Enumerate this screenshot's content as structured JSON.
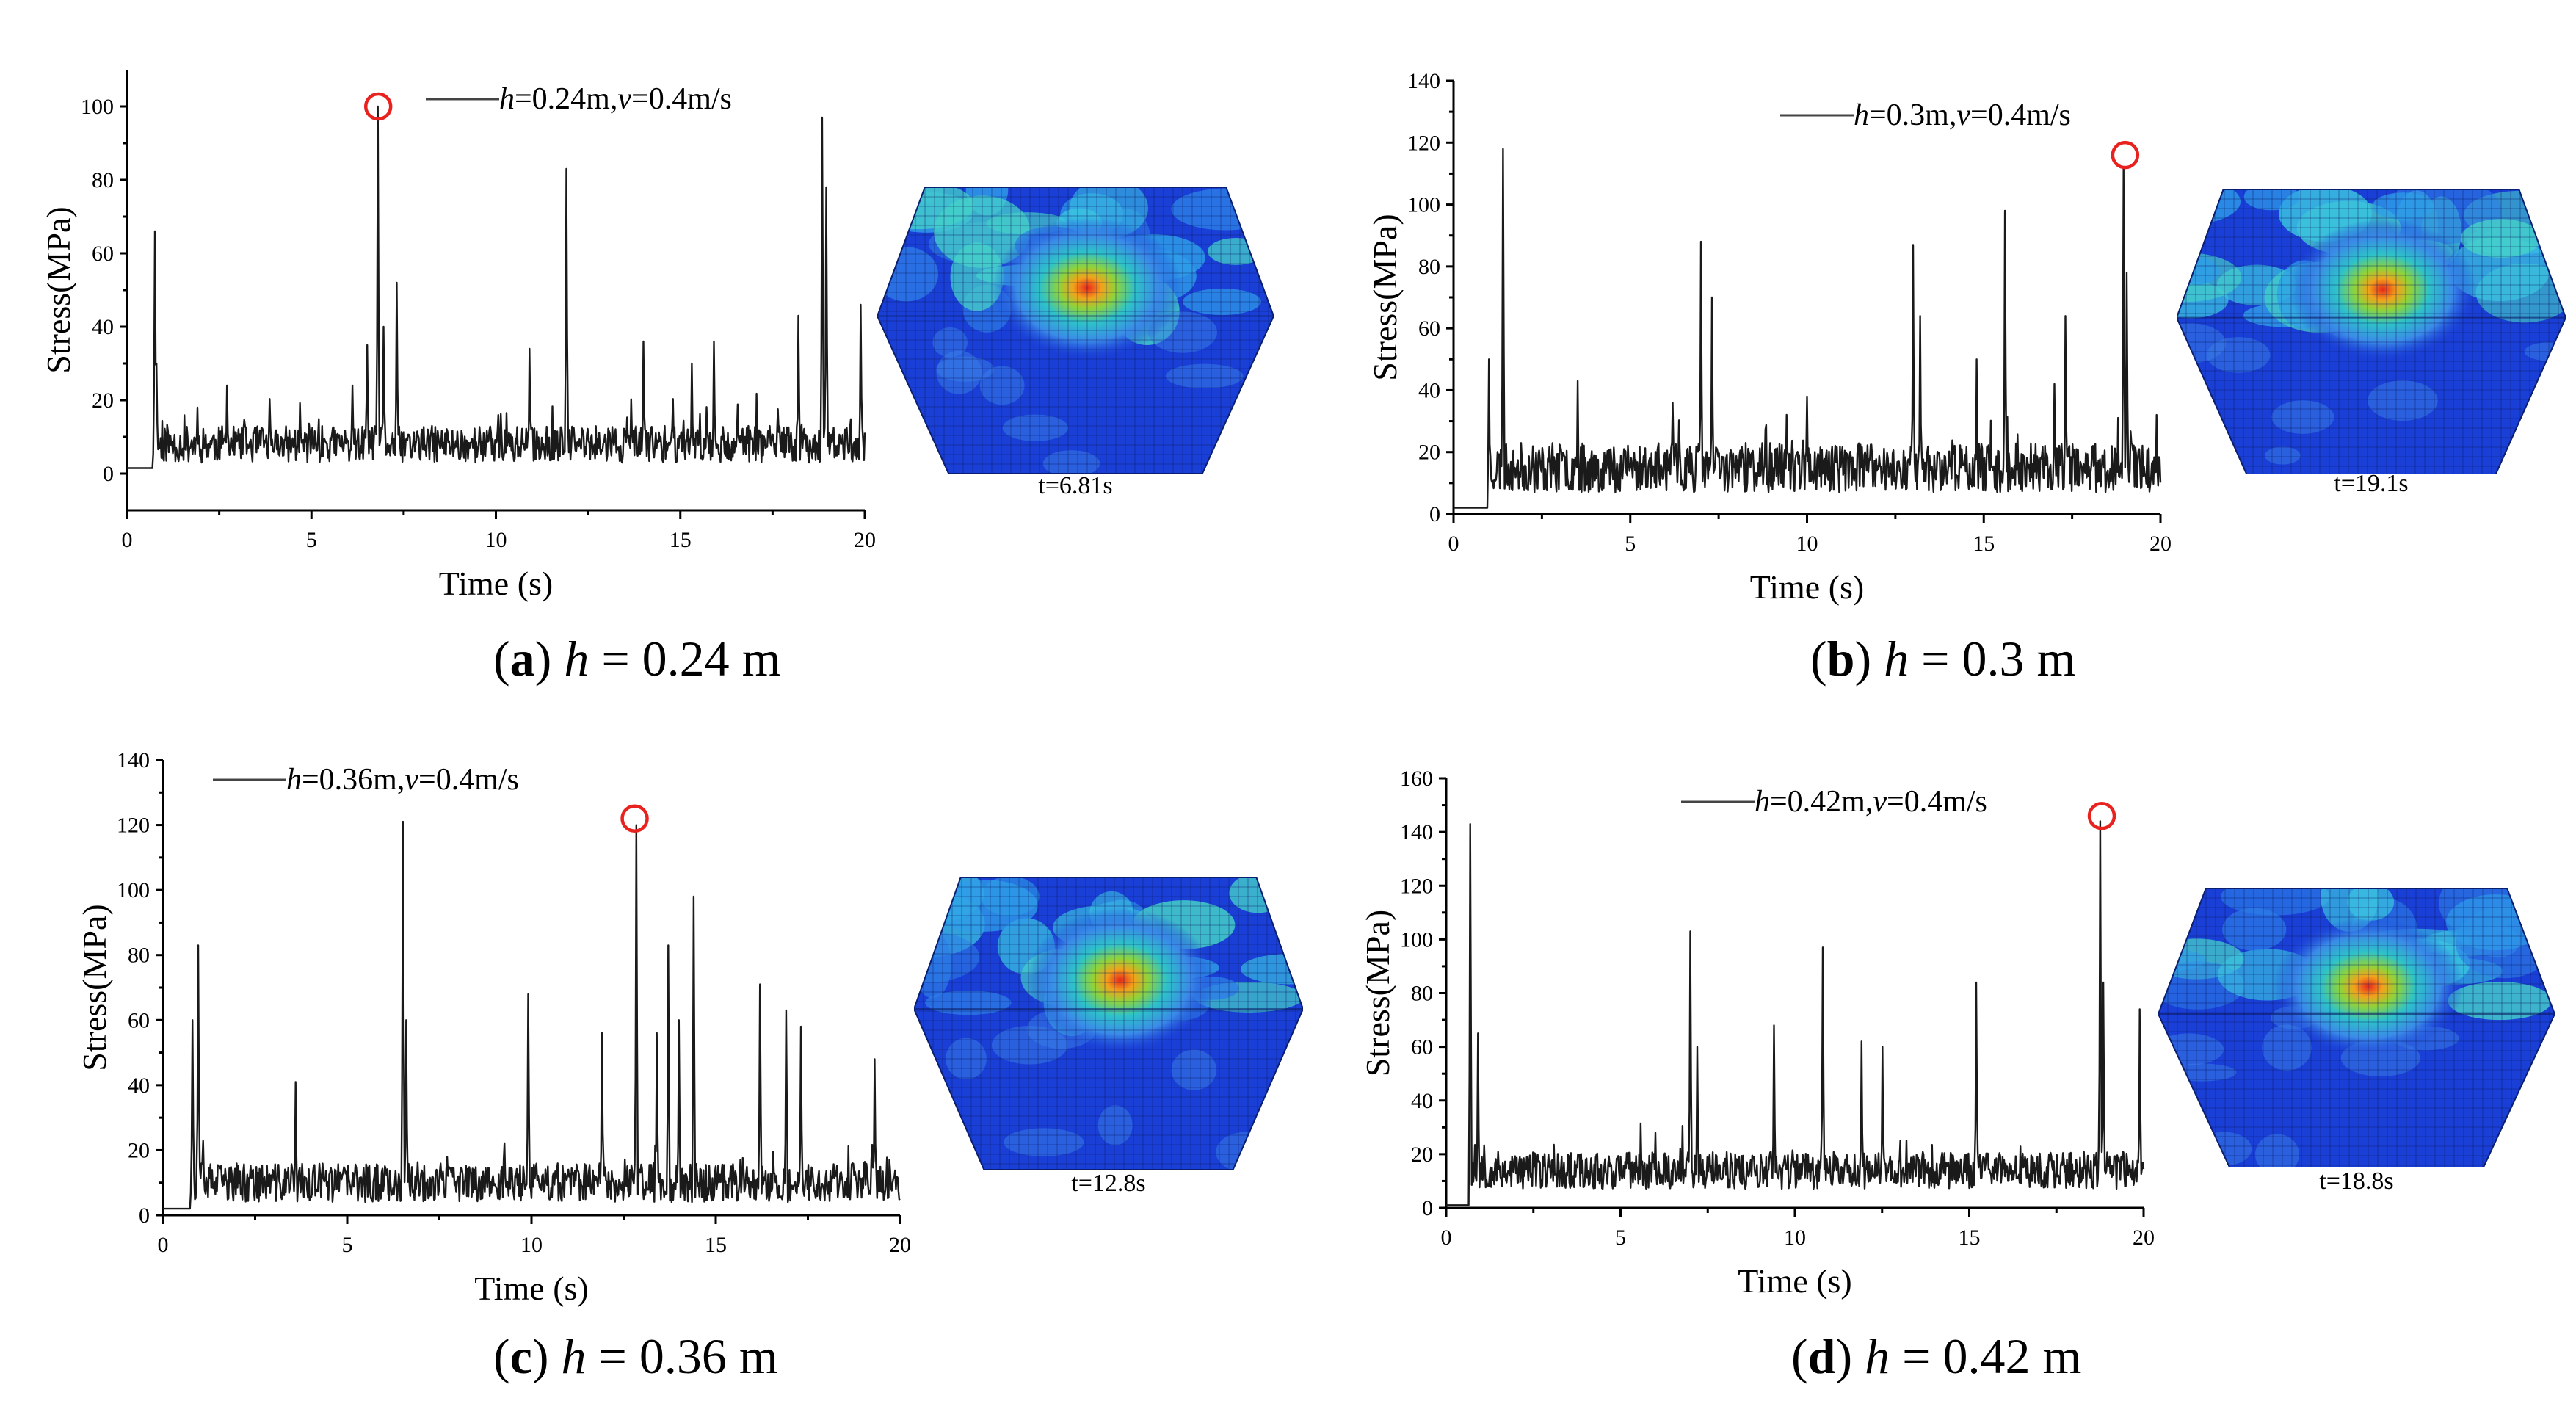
{
  "panels": [
    {
      "caption": {
        "letter": "a",
        "var": "h",
        "text": " = 0.24 m"
      },
      "snapshot_time": "t=6.81s",
      "chart_data": {
        "type": "line",
        "title": "",
        "xlabel": "Time (s)",
        "ylabel": "Stress(MPa)",
        "xlim": [
          0,
          20
        ],
        "ylim": [
          -10,
          110
        ],
        "xticks": [
          0,
          5,
          10,
          15,
          20
        ],
        "yticks": [
          0,
          20,
          40,
          60,
          80,
          100
        ],
        "legend": {
          "var_h": "h",
          "h_value": "=0.24m,",
          "var_v": "v",
          "v_value": "=0.4m/s",
          "position": "top-right"
        },
        "peak": {
          "x": 6.81,
          "y": 100
        },
        "series": [
          {
            "name": "h=0.24m,v=0.4m/s",
            "x_start": 0.7,
            "baseline": 8,
            "noise": 5,
            "pre_value": 1.5,
            "seed": 11,
            "spikes": [
              [
                0.75,
                66
              ],
              [
                0.8,
                30
              ],
              [
                1.9,
                18
              ],
              [
                2.7,
                24
              ],
              [
                6.1,
                24
              ],
              [
                6.5,
                35
              ],
              [
                6.81,
                100
              ],
              [
                6.95,
                40
              ],
              [
                7.3,
                52
              ],
              [
                10.9,
                34
              ],
              [
                11.9,
                83
              ],
              [
                14.0,
                36
              ],
              [
                15.3,
                30
              ],
              [
                15.9,
                36
              ],
              [
                18.2,
                43
              ],
              [
                18.85,
                97
              ],
              [
                18.95,
                78
              ],
              [
                19.9,
                46
              ]
            ]
          }
        ]
      }
    },
    {
      "caption": {
        "letter": "b",
        "var": "h",
        "text": " = 0.3 m"
      },
      "snapshot_time": "t=19.1s",
      "chart_data": {
        "type": "line",
        "title": "",
        "xlabel": "Time (s)",
        "ylabel": "Stress(MPa)",
        "xlim": [
          0,
          20
        ],
        "ylim": [
          0,
          140
        ],
        "xticks": [
          0,
          5,
          10,
          15,
          20
        ],
        "yticks": [
          0,
          20,
          40,
          60,
          80,
          100,
          120,
          140
        ],
        "legend": {
          "var_h": "h",
          "h_value": "=0.3m,",
          "var_v": "v",
          "v_value": "=0.4m/s",
          "position": "top-right"
        },
        "peak": {
          "x": 19.0,
          "y": 116
        },
        "series": [
          {
            "name": "h=0.3m,v=0.4m/s",
            "x_start": 1.0,
            "baseline": 15,
            "noise": 8,
            "pre_value": 2,
            "seed": 23,
            "spikes": [
              [
                1.0,
                50
              ],
              [
                1.4,
                118
              ],
              [
                3.5,
                43
              ],
              [
                6.2,
                36
              ],
              [
                7.0,
                88
              ],
              [
                7.3,
                70
              ],
              [
                10.0,
                38
              ],
              [
                13.0,
                87
              ],
              [
                13.2,
                64
              ],
              [
                14.8,
                50
              ],
              [
                15.6,
                98
              ],
              [
                17.0,
                42
              ],
              [
                17.3,
                64
              ],
              [
                18.95,
                112
              ],
              [
                19.05,
                78
              ],
              [
                19.9,
                32
              ]
            ]
          }
        ]
      }
    },
    {
      "caption": {
        "letter": "c",
        "var": "h",
        "text": " = 0.36 m"
      },
      "snapshot_time": "t=12.8s",
      "chart_data": {
        "type": "line",
        "title": "",
        "xlabel": "Time (s)",
        "ylabel": "Stress(MPa)",
        "xlim": [
          0,
          20
        ],
        "ylim": [
          0,
          140
        ],
        "xticks": [
          0,
          5,
          10,
          15,
          20
        ],
        "yticks": [
          0,
          20,
          40,
          60,
          80,
          100,
          120,
          140
        ],
        "legend": {
          "var_h": "h",
          "h_value": "=0.36m,",
          "var_v": "v",
          "v_value": "=0.4m/s",
          "position": "top-left"
        },
        "peak": {
          "x": 12.8,
          "y": 122
        },
        "series": [
          {
            "name": "h=0.36m,v=0.4m/s",
            "x_start": 0.75,
            "baseline": 10,
            "noise": 6,
            "pre_value": 2,
            "seed": 37,
            "spikes": [
              [
                0.8,
                60
              ],
              [
                0.95,
                83
              ],
              [
                3.6,
                41
              ],
              [
                6.5,
                121
              ],
              [
                6.6,
                60
              ],
              [
                9.9,
                68
              ],
              [
                11.9,
                56
              ],
              [
                12.85,
                120
              ],
              [
                13.4,
                56
              ],
              [
                13.7,
                83
              ],
              [
                14.0,
                60
              ],
              [
                14.4,
                98
              ],
              [
                16.2,
                71
              ],
              [
                16.9,
                63
              ],
              [
                17.3,
                58
              ],
              [
                19.3,
                48
              ]
            ]
          }
        ]
      }
    },
    {
      "caption": {
        "letter": "d",
        "var": "h",
        "text": " = 0.42 m"
      },
      "snapshot_time": "t=18.8s",
      "chart_data": {
        "type": "line",
        "title": "",
        "xlabel": "Time (s)",
        "ylabel": "Stress(MPa)",
        "xlim": [
          0,
          20
        ],
        "ylim": [
          0,
          160
        ],
        "xticks": [
          0,
          5,
          10,
          15,
          20
        ],
        "yticks": [
          0,
          20,
          40,
          60,
          80,
          100,
          120,
          140,
          160
        ],
        "legend": {
          "var_h": "h",
          "h_value": "=0.42m,",
          "var_v": "v",
          "v_value": "=0.4m/s",
          "position": "top-center"
        },
        "peak": {
          "x": 18.8,
          "y": 146
        },
        "series": [
          {
            "name": "h=0.42m,v=0.4m/s",
            "x_start": 0.7,
            "baseline": 14,
            "noise": 7,
            "pre_value": 1,
            "seed": 53,
            "spikes": [
              [
                0.7,
                143
              ],
              [
                0.9,
                65
              ],
              [
                6.0,
                28
              ],
              [
                7.0,
                103
              ],
              [
                7.2,
                60
              ],
              [
                9.4,
                68
              ],
              [
                10.8,
                97
              ],
              [
                11.9,
                62
              ],
              [
                12.5,
                60
              ],
              [
                15.2,
                84
              ],
              [
                18.75,
                144
              ],
              [
                18.85,
                84
              ],
              [
                19.9,
                74
              ]
            ]
          }
        ]
      }
    }
  ]
}
